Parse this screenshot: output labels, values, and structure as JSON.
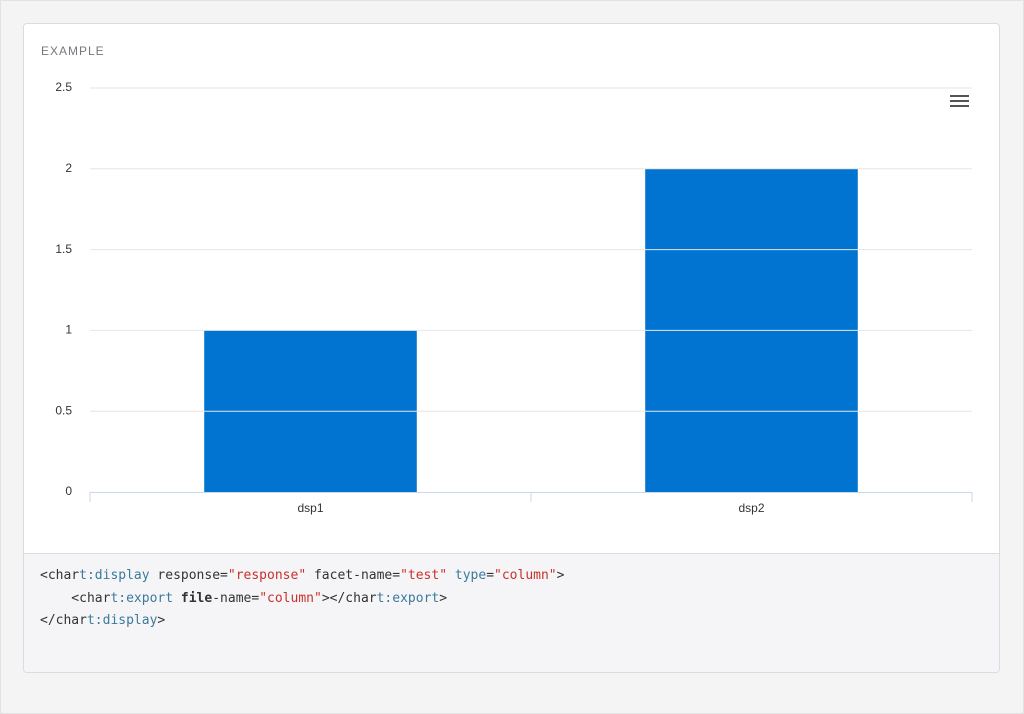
{
  "header": {
    "title": "EXAMPLE"
  },
  "chart_data": {
    "type": "bar",
    "categories": [
      "dsp1",
      "dsp2"
    ],
    "values": [
      1,
      2
    ],
    "color": "#0074d0",
    "ylim": [
      0,
      2.5
    ],
    "yticks": [
      0,
      0.5,
      1,
      1.5,
      2,
      2.5
    ],
    "grid": true
  },
  "code": {
    "lines": [
      [
        "<char",
        "t:display",
        " response=",
        "\"response\"",
        " facet-name=",
        "\"test\"",
        " type",
        "=",
        "\"column\"",
        ">"
      ],
      [
        "    <char",
        "t:export",
        " ",
        "file",
        "-name=",
        "\"column\"",
        "></char",
        "t:export",
        ">"
      ],
      [
        "</char",
        "t:display",
        ">"
      ]
    ]
  }
}
